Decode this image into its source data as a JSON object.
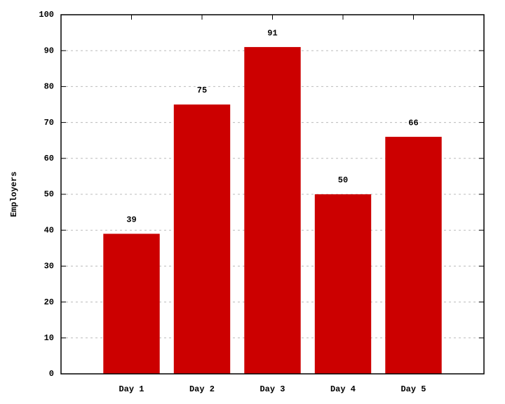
{
  "chart_data": {
    "type": "bar",
    "y_label": "Employers",
    "categories": [
      "Day 1",
      "Day 2",
      "Day 3",
      "Day 4",
      "Day 5"
    ],
    "values": [
      39,
      75,
      91,
      50,
      66
    ],
    "color": "#cc0000",
    "ylim": [
      0,
      100
    ],
    "yticks": [
      0,
      10,
      20,
      30,
      40,
      50,
      60,
      70,
      80,
      90,
      100
    ],
    "grid": true
  }
}
